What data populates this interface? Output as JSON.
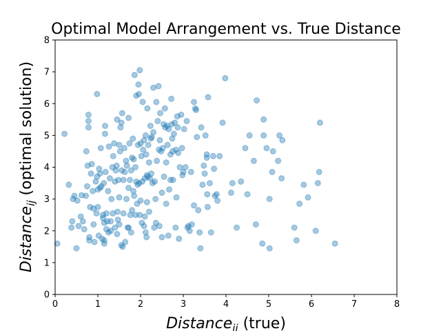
{
  "chart_data": {
    "type": "scatter",
    "title": "Optimal Model Arrangement vs. True Distance",
    "xlabel": {
      "var": "Distance",
      "sub": "ii",
      "suffix": " (true)"
    },
    "ylabel": {
      "var": "Distance",
      "sub": "ij",
      "suffix": " (optimal solution)"
    },
    "xlim": [
      0,
      8
    ],
    "ylim": [
      0,
      8
    ],
    "xticks": [
      "0",
      "1",
      "2",
      "3",
      "4",
      "5",
      "6",
      "7",
      "8"
    ],
    "yticks": [
      "0",
      "1",
      "2",
      "3",
      "4",
      "5",
      "6",
      "7",
      "8"
    ],
    "grid": false,
    "marker_color": "#1f77b4",
    "marker_alpha": 0.4,
    "points": [
      [
        0.05,
        1.6
      ],
      [
        0.22,
        5.05
      ],
      [
        0.32,
        3.45
      ],
      [
        0.38,
        2.1
      ],
      [
        0.4,
        2.3
      ],
      [
        0.42,
        3.0
      ],
      [
        0.45,
        3.1
      ],
      [
        0.5,
        1.45
      ],
      [
        0.52,
        2.95
      ],
      [
        0.55,
        2.15
      ],
      [
        0.6,
        2.45
      ],
      [
        0.62,
        3.12
      ],
      [
        0.65,
        2.3
      ],
      [
        0.68,
        2.05
      ],
      [
        0.72,
        3.1
      ],
      [
        0.73,
        4.5
      ],
      [
        0.75,
        3.4
      ],
      [
        0.76,
        4.05
      ],
      [
        0.78,
        5.25
      ],
      [
        0.78,
        5.45
      ],
      [
        0.78,
        5.65
      ],
      [
        0.8,
        1.7
      ],
      [
        0.8,
        1.8
      ],
      [
        0.82,
        2.75
      ],
      [
        0.84,
        3.8
      ],
      [
        0.86,
        4.1
      ],
      [
        0.88,
        3.25
      ],
      [
        0.9,
        2.2
      ],
      [
        0.9,
        2.7
      ],
      [
        0.92,
        1.65
      ],
      [
        0.95,
        3.55
      ],
      [
        0.97,
        2.55
      ],
      [
        0.98,
        3.7
      ],
      [
        0.98,
        6.3
      ],
      [
        1.0,
        2.75
      ],
      [
        1.0,
        3.3
      ],
      [
        1.02,
        1.85
      ],
      [
        1.03,
        3.95
      ],
      [
        1.05,
        3.35
      ],
      [
        1.05,
        3.8
      ],
      [
        1.07,
        4.6
      ],
      [
        1.08,
        3.4
      ],
      [
        1.1,
        1.75
      ],
      [
        1.12,
        2.4
      ],
      [
        1.12,
        2.5
      ],
      [
        1.14,
        3.5
      ],
      [
        1.15,
        2.25
      ],
      [
        1.15,
        1.7
      ],
      [
        1.15,
        1.6
      ],
      [
        1.17,
        5.05
      ],
      [
        1.17,
        5.3
      ],
      [
        1.18,
        3.85
      ],
      [
        1.2,
        2.05
      ],
      [
        1.2,
        2.55
      ],
      [
        1.22,
        2.3
      ],
      [
        1.24,
        3.25
      ],
      [
        1.25,
        1.95
      ],
      [
        1.26,
        4.65
      ],
      [
        1.28,
        3.65
      ],
      [
        1.3,
        2.0
      ],
      [
        1.3,
        2.3
      ],
      [
        1.32,
        3.0
      ],
      [
        1.34,
        4.0
      ],
      [
        1.35,
        2.55
      ],
      [
        1.36,
        4.35
      ],
      [
        1.38,
        4.75
      ],
      [
        1.4,
        2.1
      ],
      [
        1.4,
        3.55
      ],
      [
        1.42,
        3.9
      ],
      [
        1.44,
        4.05
      ],
      [
        1.45,
        1.9
      ],
      [
        1.45,
        5.5
      ],
      [
        1.46,
        2.6
      ],
      [
        1.47,
        2.35
      ],
      [
        1.48,
        3.6
      ],
      [
        1.5,
        4.7
      ],
      [
        1.5,
        2.2
      ],
      [
        1.5,
        3.05
      ],
      [
        1.52,
        4.5
      ],
      [
        1.53,
        5.25
      ],
      [
        1.55,
        1.55
      ],
      [
        1.55,
        5.4
      ],
      [
        1.56,
        3.9
      ],
      [
        1.57,
        5.7
      ],
      [
        1.58,
        1.5
      ],
      [
        1.6,
        3.6
      ],
      [
        1.6,
        2.55
      ],
      [
        1.62,
        4.6
      ],
      [
        1.63,
        3.85
      ],
      [
        1.64,
        1.65
      ],
      [
        1.66,
        4.2
      ],
      [
        1.67,
        3.0
      ],
      [
        1.68,
        4.05
      ],
      [
        1.7,
        2.1
      ],
      [
        1.72,
        3.35
      ],
      [
        1.72,
        5.55
      ],
      [
        1.74,
        4.75
      ],
      [
        1.75,
        3.6
      ],
      [
        1.76,
        2.5
      ],
      [
        1.78,
        1.95
      ],
      [
        1.78,
        3.9
      ],
      [
        1.8,
        4.3
      ],
      [
        1.8,
        2.65
      ],
      [
        1.82,
        4.9
      ],
      [
        1.83,
        3.25
      ],
      [
        1.84,
        4.25
      ],
      [
        1.85,
        3.1
      ],
      [
        1.86,
        6.9
      ],
      [
        1.88,
        2.5
      ],
      [
        1.88,
        4.0
      ],
      [
        1.9,
        3.55
      ],
      [
        1.9,
        6.25
      ],
      [
        1.92,
        2.85
      ],
      [
        1.93,
        3.45
      ],
      [
        1.94,
        4.7
      ],
      [
        1.95,
        6.6
      ],
      [
        1.96,
        6.3
      ],
      [
        1.97,
        3.5
      ],
      [
        1.98,
        7.05
      ],
      [
        1.98,
        2.5
      ],
      [
        2.0,
        4.75
      ],
      [
        2.0,
        2.95
      ],
      [
        2.02,
        4.35
      ],
      [
        2.03,
        2.25
      ],
      [
        2.04,
        3.55
      ],
      [
        2.05,
        6.05
      ],
      [
        2.06,
        4.55
      ],
      [
        2.08,
        2.15
      ],
      [
        2.08,
        4.85
      ],
      [
        2.1,
        3.65
      ],
      [
        2.1,
        2.45
      ],
      [
        2.12,
        5.0
      ],
      [
        2.12,
        1.95
      ],
      [
        2.13,
        4.4
      ],
      [
        2.14,
        1.8
      ],
      [
        2.15,
        3.75
      ],
      [
        2.15,
        2.9
      ],
      [
        2.16,
        5.85
      ],
      [
        2.17,
        3.7
      ],
      [
        2.18,
        4.7
      ],
      [
        2.2,
        2.6
      ],
      [
        2.2,
        4.15
      ],
      [
        2.22,
        3.65
      ],
      [
        2.23,
        5.3
      ],
      [
        2.24,
        4.9
      ],
      [
        2.25,
        3.8
      ],
      [
        2.26,
        4.95
      ],
      [
        2.28,
        3.5
      ],
      [
        2.3,
        6.5
      ],
      [
        2.3,
        5.1
      ],
      [
        2.32,
        2.1
      ],
      [
        2.33,
        3.55
      ],
      [
        2.35,
        3.0
      ],
      [
        2.36,
        2.25
      ],
      [
        2.37,
        6.05
      ],
      [
        2.38,
        4.2
      ],
      [
        2.4,
        5.45
      ],
      [
        2.42,
        6.55
      ],
      [
        2.43,
        4.55
      ],
      [
        2.44,
        2.15
      ],
      [
        2.45,
        4.85
      ],
      [
        2.46,
        5.7
      ],
      [
        2.48,
        4.5
      ],
      [
        2.5,
        3.2
      ],
      [
        2.5,
        1.8
      ],
      [
        2.52,
        4.6
      ],
      [
        2.54,
        5.35
      ],
      [
        2.55,
        3.7
      ],
      [
        2.57,
        5.85
      ],
      [
        2.58,
        5.25
      ],
      [
        2.6,
        4.15
      ],
      [
        2.6,
        2.85
      ],
      [
        2.62,
        5.3
      ],
      [
        2.63,
        4.7
      ],
      [
        2.65,
        1.85
      ],
      [
        2.66,
        5.2
      ],
      [
        2.67,
        3.3
      ],
      [
        2.7,
        4.4
      ],
      [
        2.7,
        3.6
      ],
      [
        2.72,
        6.15
      ],
      [
        2.73,
        5.35
      ],
      [
        2.74,
        4.9
      ],
      [
        2.75,
        4.5
      ],
      [
        2.76,
        3.6
      ],
      [
        2.78,
        5.05
      ],
      [
        2.8,
        5.4
      ],
      [
        2.82,
        2.1
      ],
      [
        2.83,
        4.55
      ],
      [
        2.84,
        3.05
      ],
      [
        2.86,
        5.6
      ],
      [
        2.87,
        5.25
      ],
      [
        2.88,
        4.45
      ],
      [
        2.9,
        1.75
      ],
      [
        2.92,
        4.0
      ],
      [
        2.95,
        5.65
      ],
      [
        2.97,
        4.6
      ],
      [
        2.98,
        3.75
      ],
      [
        3.0,
        3.85
      ],
      [
        3.02,
        5.2
      ],
      [
        3.05,
        4.0
      ],
      [
        3.08,
        5.45
      ],
      [
        3.1,
        2.1
      ],
      [
        3.12,
        2.15
      ],
      [
        3.15,
        2.0
      ],
      [
        3.18,
        3.85
      ],
      [
        3.2,
        2.2
      ],
      [
        3.25,
        6.05
      ],
      [
        3.25,
        2.8
      ],
      [
        3.28,
        5.85
      ],
      [
        3.3,
        5.8
      ],
      [
        3.32,
        4.95
      ],
      [
        3.35,
        2.65
      ],
      [
        3.38,
        1.95
      ],
      [
        3.4,
        1.45
      ],
      [
        3.42,
        5.25
      ],
      [
        3.45,
        3.45
      ],
      [
        3.48,
        4.05
      ],
      [
        3.5,
        3.8
      ],
      [
        3.52,
        5.0
      ],
      [
        3.55,
        4.4
      ],
      [
        3.55,
        4.3
      ],
      [
        3.56,
        3.15
      ],
      [
        3.57,
        2.75
      ],
      [
        3.58,
        6.2
      ],
      [
        3.62,
        3.5
      ],
      [
        3.65,
        1.95
      ],
      [
        3.7,
        4.35
      ],
      [
        3.72,
        3.95
      ],
      [
        3.74,
        3.1
      ],
      [
        3.78,
        3.15
      ],
      [
        3.8,
        2.95
      ],
      [
        3.85,
        4.35
      ],
      [
        3.92,
        5.4
      ],
      [
        3.98,
        6.8
      ],
      [
        4.12,
        3.2
      ],
      [
        4.15,
        3.5
      ],
      [
        4.25,
        2.1
      ],
      [
        4.35,
        3.55
      ],
      [
        4.45,
        4.6
      ],
      [
        4.5,
        3.15
      ],
      [
        4.55,
        5.0
      ],
      [
        4.65,
        4.2
      ],
      [
        4.7,
        2.2
      ],
      [
        4.72,
        6.1
      ],
      [
        4.85,
        1.6
      ],
      [
        4.88,
        5.5
      ],
      [
        4.88,
        5.0
      ],
      [
        4.95,
        4.6
      ],
      [
        5.02,
        1.45
      ],
      [
        5.02,
        3.0
      ],
      [
        5.08,
        3.85
      ],
      [
        5.1,
        4.5
      ],
      [
        5.22,
        4.2
      ],
      [
        5.25,
        5.0
      ],
      [
        5.3,
        3.65
      ],
      [
        5.32,
        4.85
      ],
      [
        5.6,
        2.1
      ],
      [
        5.65,
        1.7
      ],
      [
        5.72,
        2.85
      ],
      [
        5.82,
        3.45
      ],
      [
        5.92,
        3.05
      ],
      [
        6.1,
        2.0
      ],
      [
        6.15,
        3.5
      ],
      [
        6.18,
        3.85
      ],
      [
        6.2,
        5.4
      ],
      [
        6.55,
        1.6
      ],
      [
        1.72,
        2.1
      ]
    ]
  }
}
